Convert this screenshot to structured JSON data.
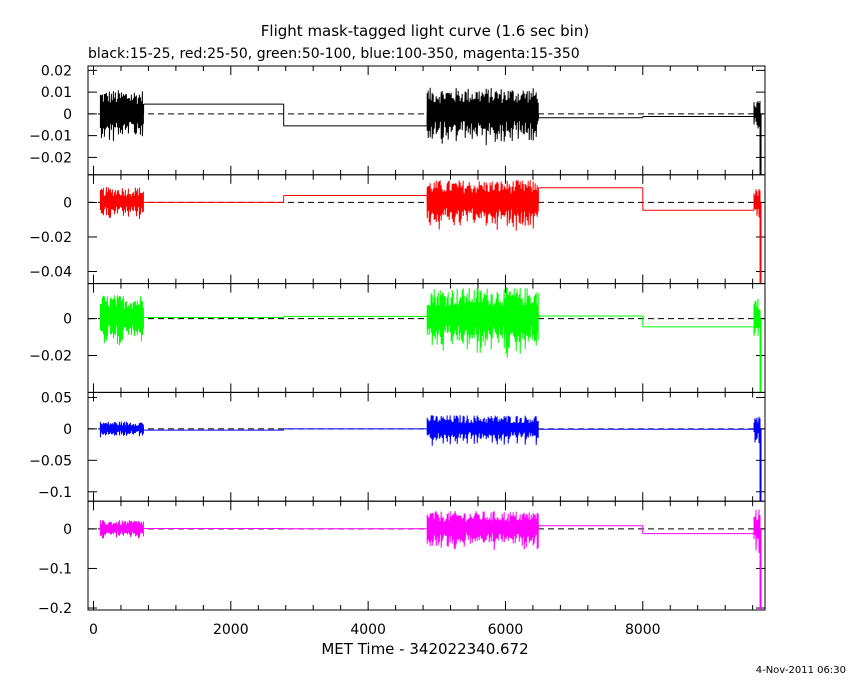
{
  "chart_data": {
    "type": "line",
    "title": "Flight mask-tagged light curve (1.6 sec bin)",
    "subtitle": "black:15-25, red:25-50, green:50-100, blue:100-350, magenta:15-350",
    "xlabel": "MET Time - 342022340.672",
    "timestamp": "4-Nov-2011 06:30",
    "xlim": [
      -80,
      9780
    ],
    "x_ticks": [
      0,
      2000,
      4000,
      6000,
      8000
    ],
    "x_tick_labels": [
      "0",
      "2000",
      "4000",
      "6000",
      "8000"
    ],
    "grid": false,
    "legend": "none",
    "data_segments": [
      [
        100,
        730
      ],
      [
        4860,
        6480
      ],
      [
        9620,
        9720
      ]
    ],
    "panels": [
      {
        "name": "black:15-25",
        "color": "#000000",
        "ylim": [
          -0.028,
          0.022
        ],
        "y_ticks": [
          0.02,
          0.01,
          0,
          -0.01,
          -0.02
        ],
        "y_tick_labels": [
          "0.02",
          "0.01",
          "0",
          "−0.01",
          "−0.02"
        ],
        "noise_amp": [
          0.011,
          0.012,
          0.006
        ],
        "steps": [
          {
            "x0": 730,
            "x1": 2770,
            "y": 0.0045
          },
          {
            "x0": 2770,
            "x1": 4860,
            "y": -0.0055
          },
          {
            "x0": 6480,
            "x1": 8000,
            "y": -0.0018
          },
          {
            "x0": 8000,
            "x1": 9620,
            "y": -0.0012
          }
        ],
        "tail": -0.028
      },
      {
        "name": "red:25-50",
        "color": "#ff0000",
        "ylim": [
          -0.047,
          0.016
        ],
        "y_ticks": [
          0,
          -0.02,
          -0.04
        ],
        "y_tick_labels": [
          "0",
          "−0.02",
          "−0.04"
        ],
        "noise_amp": [
          0.009,
          0.013,
          0.008
        ],
        "steps": [
          {
            "x0": 730,
            "x1": 2770,
            "y": 0.0
          },
          {
            "x0": 2770,
            "x1": 4860,
            "y": 0.004
          },
          {
            "x0": 6480,
            "x1": 8000,
            "y": 0.0085
          },
          {
            "x0": 8000,
            "x1": 9620,
            "y": -0.0045
          }
        ],
        "tail": -0.047
      },
      {
        "name": "green:50-100",
        "color": "#00ff00",
        "ylim": [
          -0.04,
          0.019
        ],
        "y_ticks": [
          0,
          -0.02
        ],
        "y_tick_labels": [
          "0",
          "−0.02"
        ],
        "noise_amp": [
          0.013,
          0.017,
          0.012
        ],
        "steps": [
          {
            "x0": 730,
            "x1": 2770,
            "y": 0.0006
          },
          {
            "x0": 2770,
            "x1": 4860,
            "y": 0.0012
          },
          {
            "x0": 6480,
            "x1": 8000,
            "y": 0.0014
          },
          {
            "x0": 8000,
            "x1": 9620,
            "y": -0.0045
          }
        ],
        "tail": -0.04
      },
      {
        "name": "blue:100-350",
        "color": "#0000ff",
        "ylim": [
          -0.115,
          0.058
        ],
        "y_ticks": [
          0.05,
          0,
          -0.05,
          -0.1
        ],
        "y_tick_labels": [
          "0.05",
          "0",
          "−0.05",
          "−0.1"
        ],
        "noise_amp": [
          0.012,
          0.022,
          0.02
        ],
        "steps": [
          {
            "x0": 730,
            "x1": 2770,
            "y": -0.002
          },
          {
            "x0": 2770,
            "x1": 4860,
            "y": 0.0
          },
          {
            "x0": 6480,
            "x1": 8000,
            "y": -0.0005
          },
          {
            "x0": 8000,
            "x1": 9620,
            "y": -0.0005
          }
        ],
        "tail": -0.115
      },
      {
        "name": "magenta:15-350",
        "color": "#ff00ff",
        "ylim": [
          -0.205,
          0.07
        ],
        "y_ticks": [
          0,
          -0.1,
          -0.2
        ],
        "y_tick_labels": [
          "0",
          "−0.1",
          "−0.2"
        ],
        "noise_amp": [
          0.022,
          0.045,
          0.05
        ],
        "steps": [
          {
            "x0": 730,
            "x1": 2770,
            "y": 0.001
          },
          {
            "x0": 2770,
            "x1": 4860,
            "y": 0.0005
          },
          {
            "x0": 6480,
            "x1": 8000,
            "y": 0.008
          },
          {
            "x0": 8000,
            "x1": 9620,
            "y": -0.012
          }
        ],
        "tail": -0.205
      }
    ]
  }
}
